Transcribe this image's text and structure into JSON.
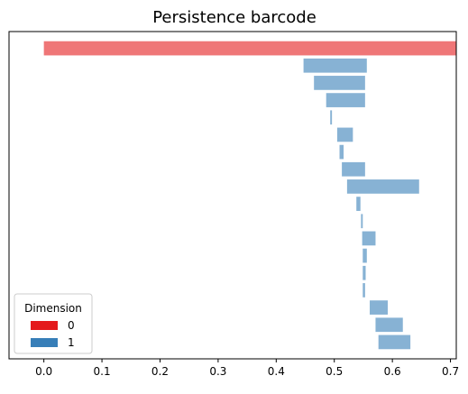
{
  "chart_data": {
    "type": "bar",
    "orientation": "horizontal",
    "title": "Persistence barcode",
    "xlabel": "",
    "ylabel": "",
    "xlim": [
      -0.06,
      0.71
    ],
    "xticks": [
      "0.0",
      "0.1",
      "0.2",
      "0.3",
      "0.4",
      "0.5",
      "0.6",
      "0.7"
    ],
    "grid": false,
    "legend": {
      "title": "Dimension",
      "placement": "lower-left",
      "entries": [
        {
          "label": "0",
          "color": "#e41a1c"
        },
        {
          "label": "1",
          "color": "#377eb8"
        }
      ]
    },
    "bar_alpha": 0.6,
    "series": [
      {
        "name": "0",
        "color": "#e41a1c",
        "bars": [
          {
            "birth": 0.0,
            "death": 0.71
          }
        ]
      },
      {
        "name": "1",
        "color": "#377eb8",
        "bars": [
          {
            "birth": 0.447,
            "death": 0.556
          },
          {
            "birth": 0.465,
            "death": 0.553
          },
          {
            "birth": 0.486,
            "death": 0.553
          },
          {
            "birth": 0.493,
            "death": 0.496
          },
          {
            "birth": 0.505,
            "death": 0.532
          },
          {
            "birth": 0.509,
            "death": 0.516
          },
          {
            "birth": 0.513,
            "death": 0.553
          },
          {
            "birth": 0.522,
            "death": 0.646
          },
          {
            "birth": 0.538,
            "death": 0.545
          },
          {
            "birth": 0.546,
            "death": 0.549
          },
          {
            "birth": 0.548,
            "death": 0.571
          },
          {
            "birth": 0.549,
            "death": 0.556
          },
          {
            "birth": 0.549,
            "death": 0.554
          },
          {
            "birth": 0.549,
            "death": 0.553
          },
          {
            "birth": 0.561,
            "death": 0.592
          },
          {
            "birth": 0.571,
            "death": 0.618
          },
          {
            "birth": 0.576,
            "death": 0.631
          }
        ]
      }
    ]
  }
}
